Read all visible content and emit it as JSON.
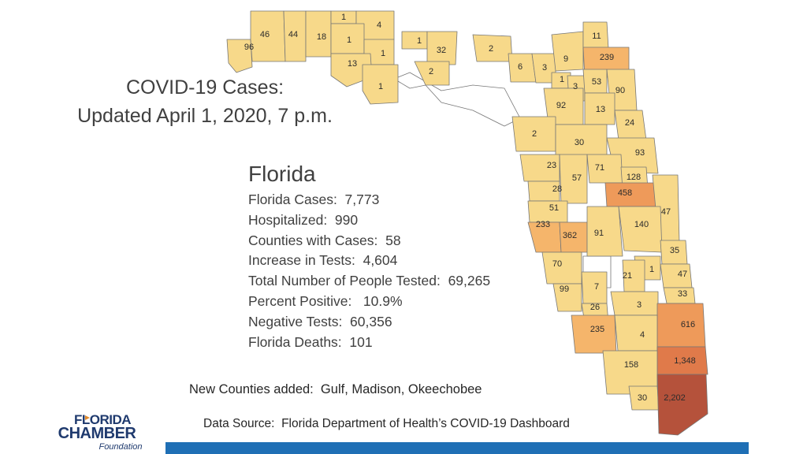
{
  "title": {
    "line1": "COVID-19 Cases:",
    "line2": "Updated April 1, 2020, 7 p.m."
  },
  "stats": {
    "heading": "Florida",
    "rows": [
      "Florida Cases:  7,773",
      "Hospitalized:  990",
      "Counties with Cases:  58",
      "Increase in Tests:  4,604",
      "Total Number of People Tested:  69,265",
      "Percent Positive:   10.9%",
      "Negative Tests:  60,356",
      "Florida Deaths:  101"
    ]
  },
  "notes": {
    "new_counties": "New Counties added:  Gulf, Madison, Okeechobee",
    "data_source": "Data Source:  Florida Department of Health’s COVID-19 Dashboard"
  },
  "logo": {
    "line1": "FLORIDA",
    "line2": "CHAMBER",
    "line3": "Foundation"
  },
  "colors": {
    "tier_low": "#f7d98a",
    "tier_mid": "#f5b56b",
    "tier_high": "#ee9a5a",
    "tier_very_high": "#e07a4a",
    "tier_max": "#b5523b",
    "no_data": "#ffffff",
    "border": "#777777",
    "bar": "#1f6fb5"
  },
  "county_values": [
    "96",
    "46",
    "44",
    "18",
    "1",
    "4",
    "1",
    "1",
    "13",
    "1",
    "1",
    "32",
    "2",
    "2",
    "6",
    "3",
    "9",
    "11",
    "239",
    "1",
    "3",
    "53",
    "90",
    "92",
    "13",
    "24",
    "2",
    "30",
    "93",
    "23",
    "57",
    "71",
    "128",
    "28",
    "458",
    "51",
    "47",
    "233",
    "362",
    "91",
    "140",
    "35",
    "70",
    "1",
    "21",
    "47",
    "7",
    "99",
    "33",
    "26",
    "3",
    "616",
    "235",
    "4",
    "1,348",
    "158",
    "30",
    "2,202"
  ]
}
